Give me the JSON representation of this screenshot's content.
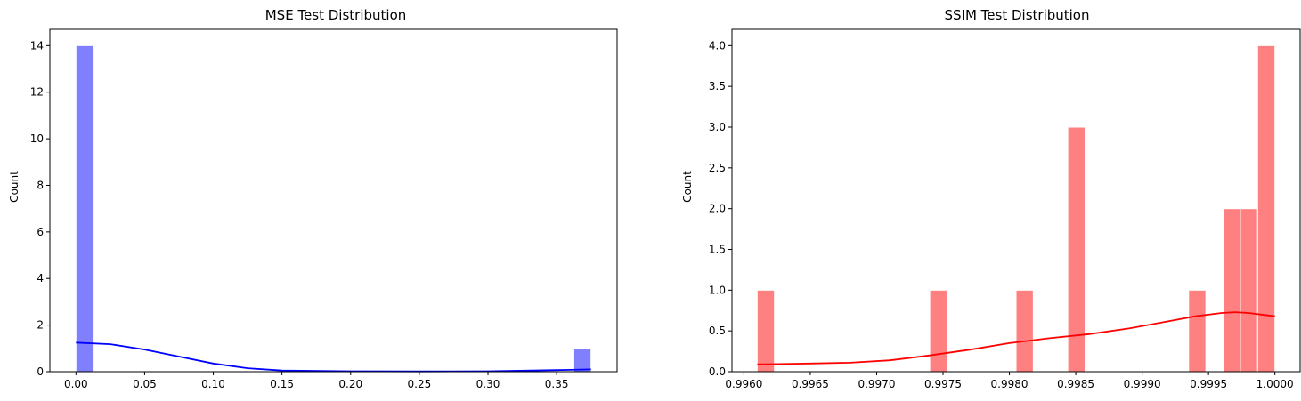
{
  "chart_data": [
    {
      "type": "histogram",
      "title": "MSE Test Distribution",
      "xlabel": "",
      "ylabel": "Count",
      "xlim": [
        -0.019,
        0.394
      ],
      "ylim": [
        0,
        14.7
      ],
      "bin_width": 0.0125,
      "bars": [
        {
          "x0": 0.0,
          "x1": 0.0125,
          "count": 14
        },
        {
          "x0": 0.3625,
          "x1": 0.375,
          "count": 1
        }
      ],
      "kde": [
        [
          0.0,
          1.25
        ],
        [
          0.025,
          1.18
        ],
        [
          0.05,
          0.95
        ],
        [
          0.075,
          0.65
        ],
        [
          0.1,
          0.35
        ],
        [
          0.125,
          0.15
        ],
        [
          0.15,
          0.05
        ],
        [
          0.2,
          0.02
        ],
        [
          0.25,
          0.01
        ],
        [
          0.3,
          0.02
        ],
        [
          0.35,
          0.07
        ],
        [
          0.375,
          0.1
        ]
      ],
      "xticks": [
        0.0,
        0.05,
        0.1,
        0.15,
        0.2,
        0.25,
        0.3,
        0.35
      ],
      "xticklabels": [
        "0.00",
        "0.05",
        "0.10",
        "0.15",
        "0.20",
        "0.25",
        "0.30",
        "0.35"
      ],
      "yticks": [
        0,
        2,
        4,
        6,
        8,
        10,
        12,
        14
      ],
      "yticklabels": [
        "0",
        "2",
        "4",
        "6",
        "8",
        "10",
        "12",
        "14"
      ],
      "color": "#8080ff",
      "kde_color": "#0000ff"
    },
    {
      "type": "histogram",
      "title": "SSIM Test Distribution",
      "xlabel": "",
      "ylabel": "Count",
      "xlim": [
        0.99591,
        1.00019
      ],
      "ylim": [
        0,
        4.2
      ],
      "bars": [
        {
          "x0": 0.9961,
          "x1": 0.99623,
          "count": 1
        },
        {
          "x0": 0.9974,
          "x1": 0.99753,
          "count": 1
        },
        {
          "x0": 0.99805,
          "x1": 0.99818,
          "count": 1
        },
        {
          "x0": 0.99844,
          "x1": 0.99857,
          "count": 3
        },
        {
          "x0": 0.99935,
          "x1": 0.99948,
          "count": 1
        },
        {
          "x0": 0.99961,
          "x1": 0.99974,
          "count": 2
        },
        {
          "x0": 0.99974,
          "x1": 0.99987,
          "count": 2
        },
        {
          "x0": 0.99987,
          "x1": 1.0,
          "count": 4
        }
      ],
      "kde": [
        [
          0.9961,
          0.09
        ],
        [
          0.9965,
          0.1
        ],
        [
          0.9968,
          0.11
        ],
        [
          0.9971,
          0.14
        ],
        [
          0.9974,
          0.2
        ],
        [
          0.9977,
          0.27
        ],
        [
          0.998,
          0.35
        ],
        [
          0.9983,
          0.41
        ],
        [
          0.9986,
          0.46
        ],
        [
          0.9989,
          0.53
        ],
        [
          0.9992,
          0.62
        ],
        [
          0.9994,
          0.68
        ],
        [
          0.9996,
          0.72
        ],
        [
          0.9997,
          0.73
        ],
        [
          0.9998,
          0.72
        ],
        [
          0.9999,
          0.7
        ],
        [
          1.0,
          0.68
        ]
      ],
      "xticks": [
        0.996,
        0.9965,
        0.997,
        0.9975,
        0.998,
        0.9985,
        0.999,
        0.9995,
        1.0
      ],
      "xticklabels": [
        "0.9960",
        "0.9965",
        "0.9970",
        "0.9975",
        "0.9980",
        "0.9985",
        "0.9990",
        "0.9995",
        "1.0000"
      ],
      "yticks": [
        0,
        0.5,
        1,
        1.5,
        2,
        2.5,
        3,
        3.5,
        4
      ],
      "yticklabels": [
        "0.0",
        "0.5",
        "1.0",
        "1.5",
        "2.0",
        "2.5",
        "3.0",
        "3.5",
        "4.0"
      ],
      "color": "#ff8080",
      "kde_color": "#ff0000"
    }
  ]
}
